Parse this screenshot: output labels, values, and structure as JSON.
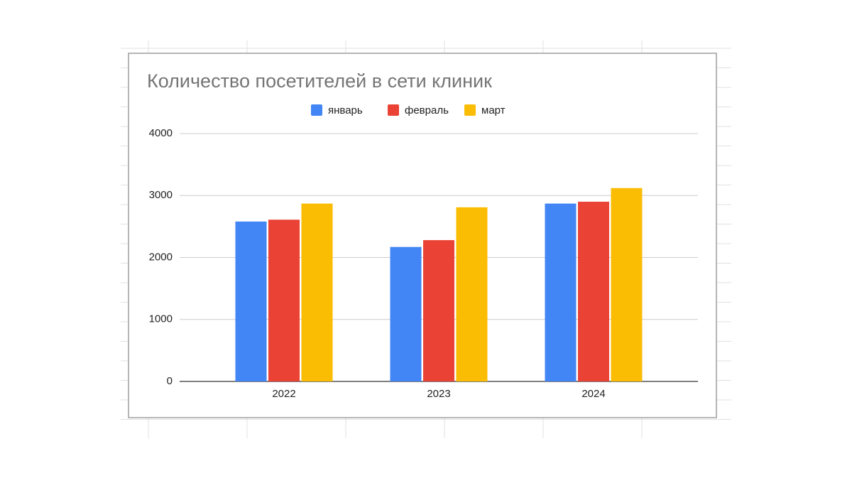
{
  "chart_data": {
    "type": "bar",
    "title": "Количество посетителей в сети клиник",
    "categories": [
      "2022",
      "2023",
      "2024"
    ],
    "series": [
      {
        "name": "январь",
        "color": "#4285f4",
        "values": [
          2580,
          2170,
          2870
        ]
      },
      {
        "name": "февраль",
        "color": "#ea4335",
        "values": [
          2610,
          2280,
          2900
        ]
      },
      {
        "name": "март",
        "color": "#fbbc04",
        "values": [
          2870,
          2810,
          3120
        ]
      }
    ],
    "ylim": [
      0,
      4000
    ],
    "yticks": [
      0,
      1000,
      2000,
      3000,
      4000
    ],
    "grid": true,
    "legend": "top"
  }
}
